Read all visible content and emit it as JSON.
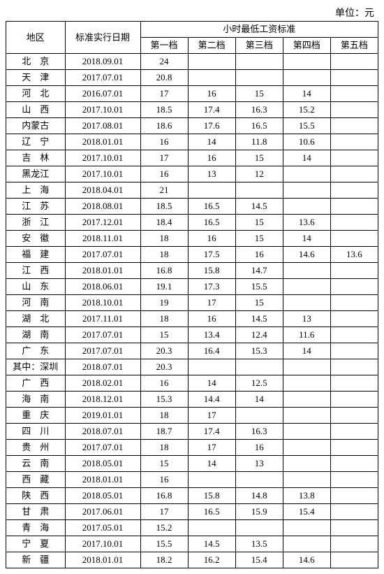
{
  "unit_label": "单位：元",
  "headers": {
    "region": "地区",
    "date": "标准实行日期",
    "wage_group": "小时最低工资标准",
    "tiers": [
      "第一档",
      "第二档",
      "第三档",
      "第四档",
      "第五档"
    ]
  },
  "rows": [
    {
      "region": "北　京",
      "date": "2018.09.01",
      "t": [
        "24",
        "",
        "",
        "",
        ""
      ]
    },
    {
      "region": "天　津",
      "date": "2017.07.01",
      "t": [
        "20.8",
        "",
        "",
        "",
        ""
      ]
    },
    {
      "region": "河　北",
      "date": "2016.07.01",
      "t": [
        "17",
        "16",
        "15",
        "14",
        ""
      ]
    },
    {
      "region": "山　西",
      "date": "2017.10.01",
      "t": [
        "18.5",
        "17.4",
        "16.3",
        "15.2",
        ""
      ]
    },
    {
      "region": "内蒙古",
      "date": "2017.08.01",
      "t": [
        "18.6",
        "17.6",
        "16.5",
        "15.5",
        ""
      ]
    },
    {
      "region": "辽　宁",
      "date": "2018.01.01",
      "t": [
        "16",
        "14",
        "11.8",
        "10.6",
        ""
      ]
    },
    {
      "region": "吉　林",
      "date": "2017.10.01",
      "t": [
        "17",
        "16",
        "15",
        "14",
        ""
      ]
    },
    {
      "region": "黑龙江",
      "date": "2017.10.01",
      "t": [
        "16",
        "13",
        "12",
        "",
        ""
      ]
    },
    {
      "region": "上　海",
      "date": "2018.04.01",
      "t": [
        "21",
        "",
        "",
        "",
        ""
      ]
    },
    {
      "region": "江　苏",
      "date": "2018.08.01",
      "t": [
        "18.5",
        "16.5",
        "14.5",
        "",
        ""
      ]
    },
    {
      "region": "浙　江",
      "date": "2017.12.01",
      "t": [
        "18.4",
        "16.5",
        "15",
        "13.6",
        ""
      ]
    },
    {
      "region": "安　徽",
      "date": "2018.11.01",
      "t": [
        "18",
        "16",
        "15",
        "14",
        ""
      ]
    },
    {
      "region": "福　建",
      "date": "2017.07.01",
      "t": [
        "18",
        "17.5",
        "16",
        "14.6",
        "13.6"
      ]
    },
    {
      "region": "江　西",
      "date": "2018.01.01",
      "t": [
        "16.8",
        "15.8",
        "14.7",
        "",
        ""
      ]
    },
    {
      "region": "山　东",
      "date": "2018.06.01",
      "t": [
        "19.1",
        "17.3",
        "15.5",
        "",
        ""
      ]
    },
    {
      "region": "河　南",
      "date": "2018.10.01",
      "t": [
        "19",
        "17",
        "15",
        "",
        ""
      ]
    },
    {
      "region": "湖　北",
      "date": "2017.11.01",
      "t": [
        "18",
        "16",
        "14.5",
        "13",
        ""
      ]
    },
    {
      "region": "湖　南",
      "date": "2017.07.01",
      "t": [
        "15",
        "13.4",
        "12.4",
        "11.6",
        ""
      ]
    },
    {
      "region": "广　东",
      "date": "2017.07.01",
      "t": [
        "20.3",
        "16.4",
        "15.3",
        "14",
        ""
      ]
    },
    {
      "region": "其中：深圳",
      "date": "2018.07.01",
      "t": [
        "20.3",
        "",
        "",
        "",
        ""
      ],
      "noSpread": true
    },
    {
      "region": "广　西",
      "date": "2018.02.01",
      "t": [
        "16",
        "14",
        "12.5",
        "",
        ""
      ]
    },
    {
      "region": "海　南",
      "date": "2018.12.01",
      "t": [
        "15.3",
        "14.4",
        "14",
        "",
        ""
      ]
    },
    {
      "region": "重　庆",
      "date": "2019.01.01",
      "t": [
        "18",
        "17",
        "",
        "",
        ""
      ]
    },
    {
      "region": "四　川",
      "date": "2018.07.01",
      "t": [
        "18.7",
        "17.4",
        "16.3",
        "",
        ""
      ]
    },
    {
      "region": "贵　州",
      "date": "2017.07.01",
      "t": [
        "18",
        "17",
        "16",
        "",
        ""
      ]
    },
    {
      "region": "云　南",
      "date": "2018.05.01",
      "t": [
        "15",
        "14",
        "13",
        "",
        ""
      ]
    },
    {
      "region": "西　藏",
      "date": "2018.01.01",
      "t": [
        "16",
        "",
        "",
        "",
        ""
      ]
    },
    {
      "region": "陕　西",
      "date": "2018.05.01",
      "t": [
        "16.8",
        "15.8",
        "14.8",
        "13.8",
        ""
      ]
    },
    {
      "region": "甘　肃",
      "date": "2017.06.01",
      "t": [
        "17",
        "16.5",
        "15.9",
        "15.4",
        ""
      ]
    },
    {
      "region": "青　海",
      "date": "2017.05.01",
      "t": [
        "15.2",
        "",
        "",
        "",
        ""
      ]
    },
    {
      "region": "宁　夏",
      "date": "2017.10.01",
      "t": [
        "15.5",
        "14.5",
        "13.5",
        "",
        ""
      ]
    },
    {
      "region": "新　疆",
      "date": "2018.01.01",
      "t": [
        "18.2",
        "16.2",
        "15.4",
        "14.6",
        ""
      ]
    }
  ]
}
